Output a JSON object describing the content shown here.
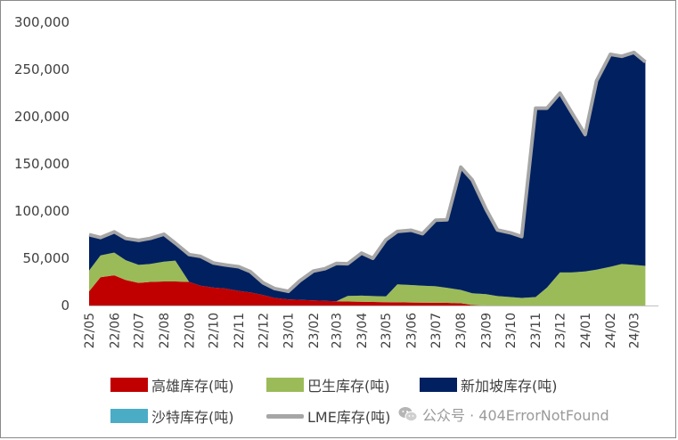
{
  "chart_data": {
    "type": "area",
    "stacked": true,
    "y_ticks": [
      "0",
      "50,000",
      "100,000",
      "150,000",
      "200,000",
      "250,000",
      "300,000"
    ],
    "ylim": [
      0,
      300000
    ],
    "x_tick_labels": [
      "22/05",
      "22/06",
      "22/07",
      "22/08",
      "22/09",
      "22/10",
      "22/11",
      "22/12",
      "23/01",
      "23/02",
      "23/03",
      "23/04",
      "23/05",
      "23/06",
      "23/07",
      "23/08",
      "23/09",
      "23/10",
      "23/11",
      "23/12",
      "24/01",
      "24/02",
      "24/03"
    ],
    "x": [
      "22/05/01",
      "22/05/15",
      "22/06/01",
      "22/06/15",
      "22/07/01",
      "22/07/15",
      "22/08/01",
      "22/08/15",
      "22/09/01",
      "22/09/15",
      "22/10/01",
      "22/10/15",
      "22/11/01",
      "22/11/15",
      "22/12/01",
      "22/12/15",
      "23/01/01",
      "23/01/15",
      "23/02/01",
      "23/02/15",
      "23/03/01",
      "23/03/15",
      "23/04/01",
      "23/04/15",
      "23/05/01",
      "23/05/15",
      "23/06/01",
      "23/06/15",
      "23/07/01",
      "23/07/15",
      "23/08/01",
      "23/08/15",
      "23/09/01",
      "23/09/15",
      "23/10/01",
      "23/10/15",
      "23/11/01",
      "23/11/15",
      "23/12/01",
      "23/12/15",
      "24/01/01",
      "24/01/15",
      "24/02/01",
      "24/02/15",
      "24/03/01",
      "24/03/15"
    ],
    "series": [
      {
        "name": "高雄库存(吨)",
        "color": "#c00000",
        "values": [
          15000,
          30000,
          32000,
          27000,
          24000,
          25000,
          25500,
          25500,
          25000,
          21000,
          19000,
          18000,
          15500,
          14000,
          11000,
          8000,
          6500,
          6000,
          5500,
          5000,
          4500,
          4200,
          4000,
          3800,
          3600,
          3400,
          3200,
          3000,
          2900,
          2800,
          2500,
          500,
          0,
          0,
          0,
          0,
          0,
          0,
          0,
          0,
          0,
          0,
          0,
          0,
          0,
          0
        ]
      },
      {
        "name": "巴生库存(吨)",
        "color": "#9bbb59",
        "values": [
          22000,
          23000,
          24000,
          21000,
          19000,
          19000,
          21000,
          22000,
          0,
          0,
          0,
          0,
          0,
          0,
          0,
          0,
          0,
          0,
          0,
          0,
          0,
          6000,
          6500,
          6200,
          6000,
          19000,
          18500,
          18000,
          17500,
          16000,
          14000,
          12500,
          12000,
          10000,
          9000,
          8000,
          9000,
          19000,
          35000,
          35000,
          36000,
          38000,
          41000,
          44000,
          43000,
          42000
        ]
      },
      {
        "name": "新加坡库存(吨)",
        "color": "#002060",
        "values": [
          38000,
          19000,
          22000,
          23000,
          26000,
          27000,
          27500,
          17000,
          29000,
          31000,
          26000,
          25000,
          25500,
          22000,
          13000,
          10000,
          8500,
          20000,
          31000,
          34000,
          40000,
          34000,
          45000,
          40000,
          60000,
          56000,
          58000,
          55000,
          70000,
          72000,
          130000,
          120000,
          90000,
          70000,
          68000,
          65000,
          200000,
          190000,
          190000,
          170000,
          145000,
          200000,
          225000,
          220000,
          225000,
          216000
        ]
      },
      {
        "name": "沙特库存(吨)",
        "color": "#4bacc6",
        "values": [
          0,
          0,
          0,
          0,
          0,
          0,
          1500,
          1500,
          0,
          0,
          0,
          0,
          0,
          0,
          0,
          0,
          0,
          0,
          0,
          0,
          0,
          0,
          0,
          0,
          0,
          0,
          0,
          0,
          0,
          0,
          0,
          0,
          0,
          0,
          0,
          0,
          0,
          0,
          0,
          0,
          0,
          0,
          0,
          0,
          0,
          0
        ]
      }
    ],
    "lme_series": {
      "name": "LME库存(吨)",
      "color": "#a6a6a6",
      "values": [
        75000,
        72000,
        78000,
        71000,
        69000,
        71000,
        75500,
        66000,
        54000,
        52000,
        45000,
        43000,
        41000,
        36000,
        24000,
        18000,
        15000,
        26000,
        36500,
        39000,
        44500,
        44200,
        55500,
        50000,
        69600,
        78400,
        79700,
        76000,
        90400,
        90800,
        146500,
        133000,
        102000,
        80000,
        77000,
        73000,
        209000,
        209000,
        225000,
        205000,
        181000,
        238000,
        266000,
        264000,
        268000,
        258000
      ]
    },
    "legend_placement": "bottom"
  },
  "watermark": {
    "text": "公众号 · 404ErrorNotFound"
  }
}
